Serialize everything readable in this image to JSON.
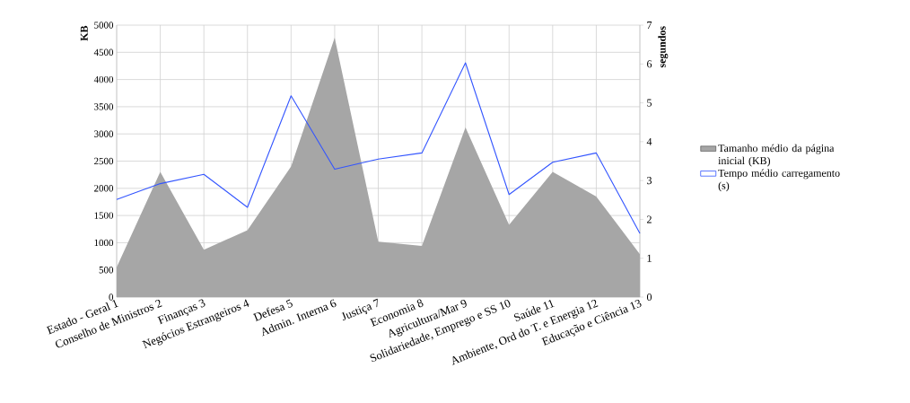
{
  "chart_data": {
    "type": "area",
    "categories": [
      "Estado - Geral 1",
      "Conselho de Ministros 2",
      "Finanças 3",
      "Negócios Estrangeiros 4",
      "Defesa 5",
      "Admin. Interna 6",
      "Justiça 7",
      "Economia 8",
      "Agricultura/Mar 9",
      "Solidariedade, Emprego e SS 10",
      "Saúde 11",
      "Ambiente, Ord do T. e Energia 12",
      "Educação e Ciência 13"
    ],
    "series": [
      {
        "name": "Tamanho médio da página inicial (KB)",
        "color": "#a6a6a6",
        "values": [
          550,
          2300,
          870,
          1230,
          2400,
          4770,
          1020,
          940,
          3120,
          1330,
          2300,
          1850,
          790
        ]
      },
      {
        "name": "Tempo médio carregamento (s)",
        "type": "line",
        "axis": "y2",
        "color": "#3355ff",
        "values": [
          2.51,
          2.92,
          3.16,
          2.31,
          5.18,
          3.29,
          3.55,
          3.71,
          6.03,
          2.64,
          3.47,
          3.71,
          1.64
        ]
      }
    ],
    "ylabel": "KB",
    "y2label": "segundos",
    "ylim": [
      0,
      5000
    ],
    "yticks": [
      0,
      500,
      1000,
      1500,
      2000,
      2500,
      3000,
      3500,
      4000,
      4500,
      5000
    ],
    "y2lim": [
      0,
      7
    ],
    "y2ticks": [
      0,
      1,
      2,
      3,
      4,
      5,
      6,
      7
    ],
    "grid": true,
    "legend": "right"
  }
}
